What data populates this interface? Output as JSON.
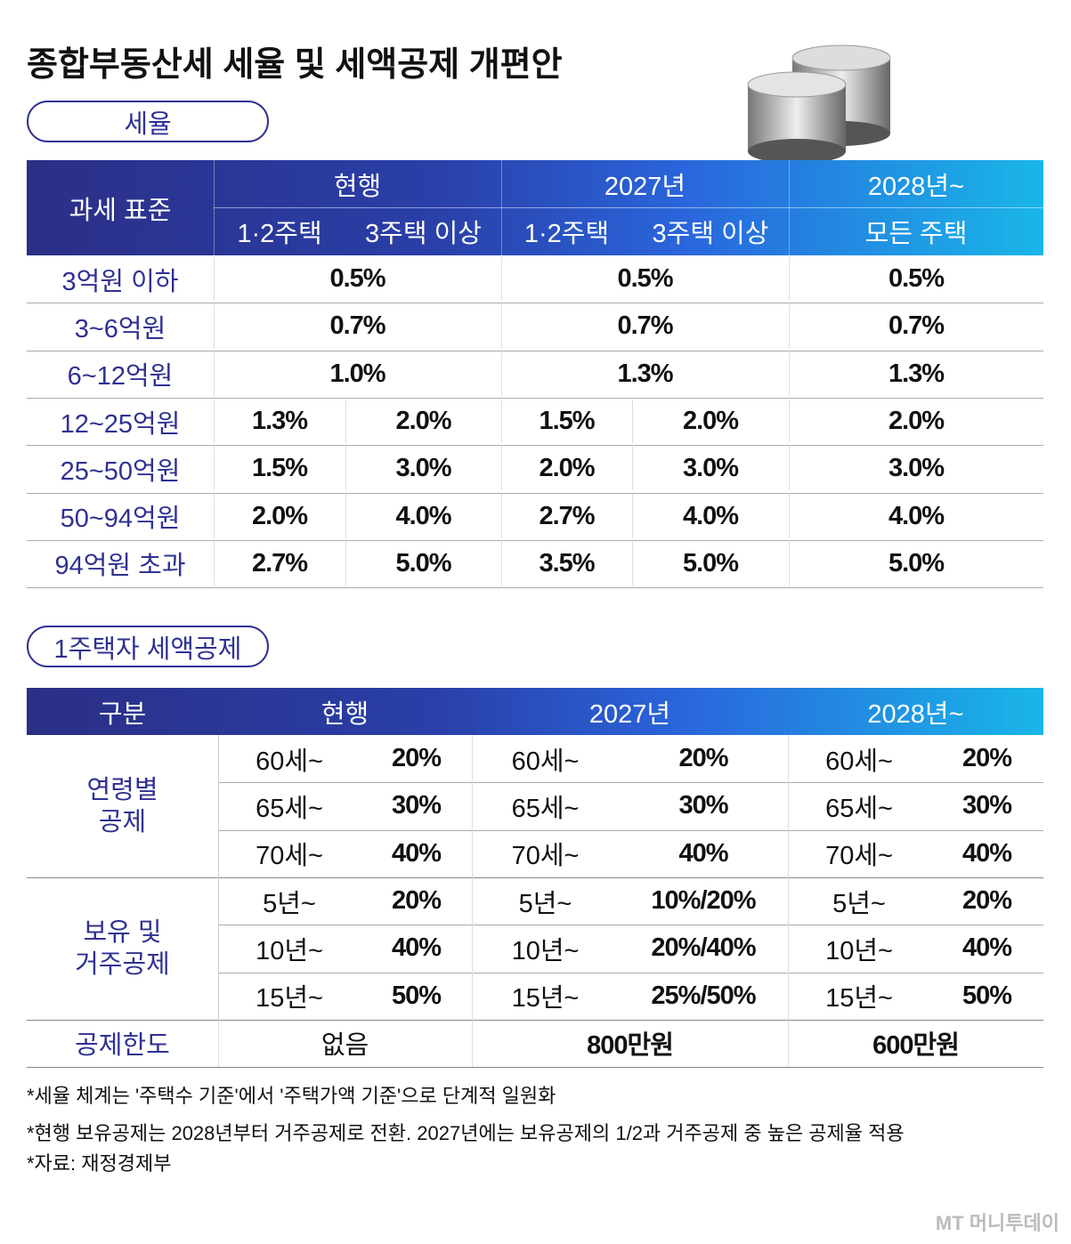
{
  "title": "종합부동산세 세율 및 세액공제 개편안",
  "rate_section": {
    "label": "세율",
    "header": {
      "corner": "과세 표준",
      "groups": [
        "현행",
        "2027년",
        "2028년~"
      ],
      "subs": [
        "1·2주택",
        "3주택 이상",
        "1·2주택",
        "3주택 이상",
        "모든 주택"
      ]
    },
    "rows": [
      {
        "label": "3억원 이하",
        "cells": [
          "0.5%",
          "0.5%",
          "0.5%"
        ]
      },
      {
        "label": "3~6억원",
        "cells": [
          "0.7%",
          "0.7%",
          "0.7%"
        ]
      },
      {
        "label": "6~12억원",
        "cells": [
          "1.0%",
          "1.3%",
          "1.3%"
        ]
      },
      {
        "label": "12~25억원",
        "cells": [
          "1.3%",
          "2.0%",
          "1.5%",
          "2.0%",
          "2.0%"
        ]
      },
      {
        "label": "25~50억원",
        "cells": [
          "1.5%",
          "3.0%",
          "2.0%",
          "3.0%",
          "3.0%"
        ]
      },
      {
        "label": "50~94억원",
        "cells": [
          "2.0%",
          "4.0%",
          "2.7%",
          "4.0%",
          "4.0%"
        ]
      },
      {
        "label": "94억원 초과",
        "cells": [
          "2.7%",
          "5.0%",
          "3.5%",
          "5.0%",
          "5.0%"
        ]
      }
    ]
  },
  "credit_section": {
    "label": "1주택자 세액공제",
    "header": [
      "구분",
      "현행",
      "2027년",
      "2028년~"
    ],
    "groups": [
      {
        "label": [
          "연령별",
          "공제"
        ],
        "rows": [
          [
            "60세~",
            "20%",
            "60세~",
            "20%",
            "60세~",
            "20%"
          ],
          [
            "65세~",
            "30%",
            "65세~",
            "30%",
            "65세~",
            "30%"
          ],
          [
            "70세~",
            "40%",
            "70세~",
            "40%",
            "70세~",
            "40%"
          ]
        ]
      },
      {
        "label": [
          "보유 및",
          "거주공제"
        ],
        "rows": [
          [
            "5년~",
            "20%",
            "5년~",
            "10%/20%",
            "5년~",
            "20%"
          ],
          [
            "10년~",
            "40%",
            "10년~",
            "20%/40%",
            "10년~",
            "40%"
          ],
          [
            "15년~",
            "50%",
            "15년~",
            "25%/50%",
            "15년~",
            "50%"
          ]
        ]
      }
    ],
    "limit": {
      "label": "공제한도",
      "cells": [
        "없음",
        "800만원",
        "600만원"
      ]
    }
  },
  "footnotes": [
    "*세율 체계는 '주택수 기준'에서 '주택가액 기준'으로 단계적 일원화",
    "*현행 보유공제는 2028년부터 거주공제로 전환. 2027년에는 보유공제의 1/2과 거주공제 중 높은 공제율 적용",
    "*자료: 재정경제부"
  ],
  "watermark": "MT 머니투데이"
}
